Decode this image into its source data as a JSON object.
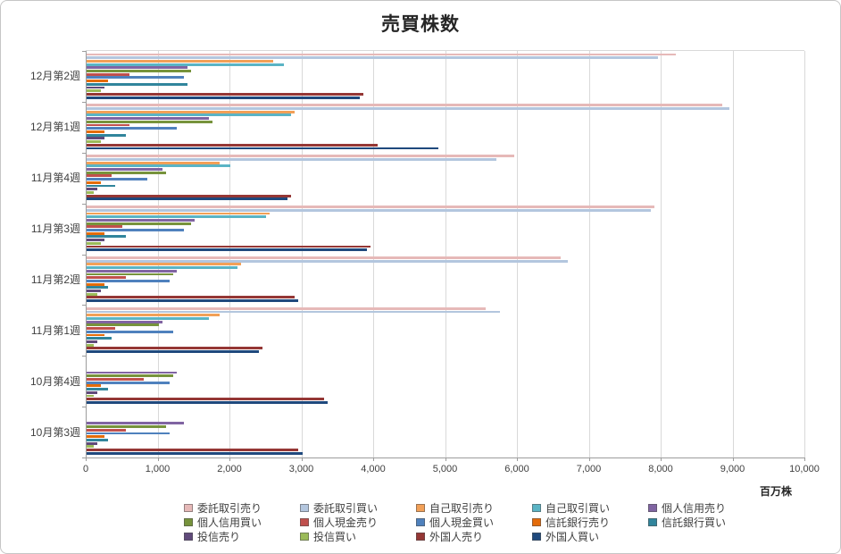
{
  "title": "売買株数",
  "axis": {
    "unit_label": "百万株"
  },
  "chart_data": {
    "type": "bar",
    "orientation": "horizontal",
    "title": "売買株数",
    "x_unit": "百万株",
    "xlim": [
      0,
      10000
    ],
    "x_tick_step": 1000,
    "x_tick_labels": [
      "0",
      "1,000",
      "2,000",
      "3,000",
      "4,000",
      "5,000",
      "6,000",
      "7,000",
      "8,000",
      "9,000",
      "10,000"
    ],
    "grid": true,
    "legend_position": "bottom",
    "categories": [
      "12月第2週",
      "12月第1週",
      "11月第4週",
      "11月第3週",
      "11月第2週",
      "11月第1週",
      "10月第4週",
      "10月第3週"
    ],
    "series": [
      {
        "name": "委託取引売り",
        "color": "#e6b9b8",
        "values": [
          8200,
          8850,
          5950,
          7900,
          6600,
          5550,
          0,
          0
        ]
      },
      {
        "name": "委託取引買い",
        "color": "#b3c6de",
        "values": [
          7950,
          8950,
          5700,
          7850,
          6700,
          5750,
          0,
          0
        ]
      },
      {
        "name": "自己取引売り",
        "color": "#f2a057",
        "values": [
          2600,
          2900,
          1850,
          2550,
          2150,
          1850,
          0,
          0
        ]
      },
      {
        "name": "自己取引買い",
        "color": "#5ab4c5",
        "values": [
          2750,
          2850,
          2000,
          2500,
          2100,
          1700,
          0,
          0
        ]
      },
      {
        "name": "個人信用売り",
        "color": "#8064a2",
        "values": [
          1400,
          1700,
          1050,
          1500,
          1250,
          1050,
          1250,
          1350
        ]
      },
      {
        "name": "個人信用買い",
        "color": "#77933c",
        "values": [
          1450,
          1750,
          1100,
          1450,
          1200,
          1000,
          1200,
          1100
        ]
      },
      {
        "name": "個人現金売り",
        "color": "#c0504d",
        "values": [
          600,
          600,
          350,
          500,
          550,
          400,
          800,
          550
        ]
      },
      {
        "name": "個人現金買い",
        "color": "#4f81bd",
        "values": [
          1350,
          1250,
          850,
          1350,
          1150,
          1200,
          1150,
          1150
        ]
      },
      {
        "name": "信託銀行売り",
        "color": "#e46c0a",
        "values": [
          300,
          250,
          200,
          250,
          250,
          250,
          200,
          250
        ]
      },
      {
        "name": "信託銀行買い",
        "color": "#31859c",
        "values": [
          1400,
          550,
          400,
          550,
          300,
          350,
          300,
          300
        ]
      },
      {
        "name": "投信売り",
        "color": "#604a7b",
        "values": [
          250,
          250,
          150,
          250,
          200,
          150,
          150,
          150
        ]
      },
      {
        "name": "投信買い",
        "color": "#9bbb59",
        "values": [
          200,
          200,
          100,
          200,
          150,
          100,
          100,
          100
        ]
      },
      {
        "name": "外国人売り",
        "color": "#953735",
        "values": [
          3850,
          4050,
          2850,
          3950,
          2900,
          2450,
          3300,
          2950
        ]
      },
      {
        "name": "外国人買い",
        "color": "#1f497d",
        "values": [
          3800,
          4900,
          2800,
          3900,
          2950,
          2400,
          3350,
          3000
        ]
      }
    ]
  }
}
